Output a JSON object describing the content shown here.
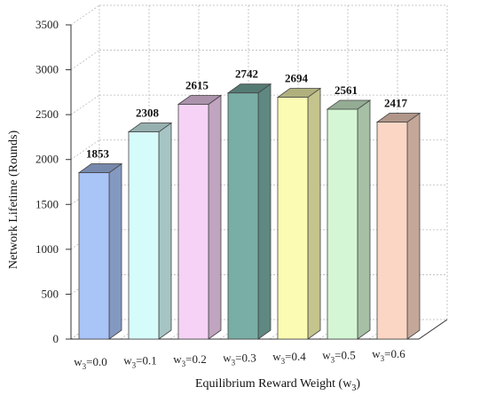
{
  "chart_data": {
    "type": "bar",
    "style": "3d",
    "title": "",
    "categories": [
      {
        "base": "w",
        "sub": "3",
        "rest": "=0.0"
      },
      {
        "base": "w",
        "sub": "3",
        "rest": "=0.1"
      },
      {
        "base": "w",
        "sub": "3",
        "rest": "=0.2"
      },
      {
        "base": "w",
        "sub": "3",
        "rest": "=0.3"
      },
      {
        "base": "w",
        "sub": "3",
        "rest": "=0.4"
      },
      {
        "base": "w",
        "sub": "3",
        "rest": "=0.5"
      },
      {
        "base": "w",
        "sub": "3",
        "rest": "=0.6"
      }
    ],
    "values": [
      1853,
      2308,
      2615,
      2742,
      2694,
      2561,
      2417
    ],
    "value_labels": [
      "1853",
      "2308",
      "2615",
      "2742",
      "2694",
      "2561",
      "2417"
    ],
    "colors": [
      "#a9c4f7",
      "#d6fbfb",
      "#f6d2f6",
      "#79aea6",
      "#fbfbb4",
      "#d4f6d4",
      "#fbd6c4"
    ],
    "yticks": [
      0,
      500,
      1000,
      1500,
      2000,
      2500,
      3000,
      3500
    ],
    "ytick_labels": [
      "0",
      "500",
      "1000",
      "1500",
      "2000",
      "2500",
      "3000",
      "3500"
    ],
    "ylim": [
      0,
      3500
    ],
    "ylabel": "Network Lifetime (Rounds)",
    "xlabel": {
      "pre": "Equilibrium Reward Weight (w",
      "sub": "3",
      "post": ")"
    },
    "grid": true,
    "legend": "none"
  }
}
